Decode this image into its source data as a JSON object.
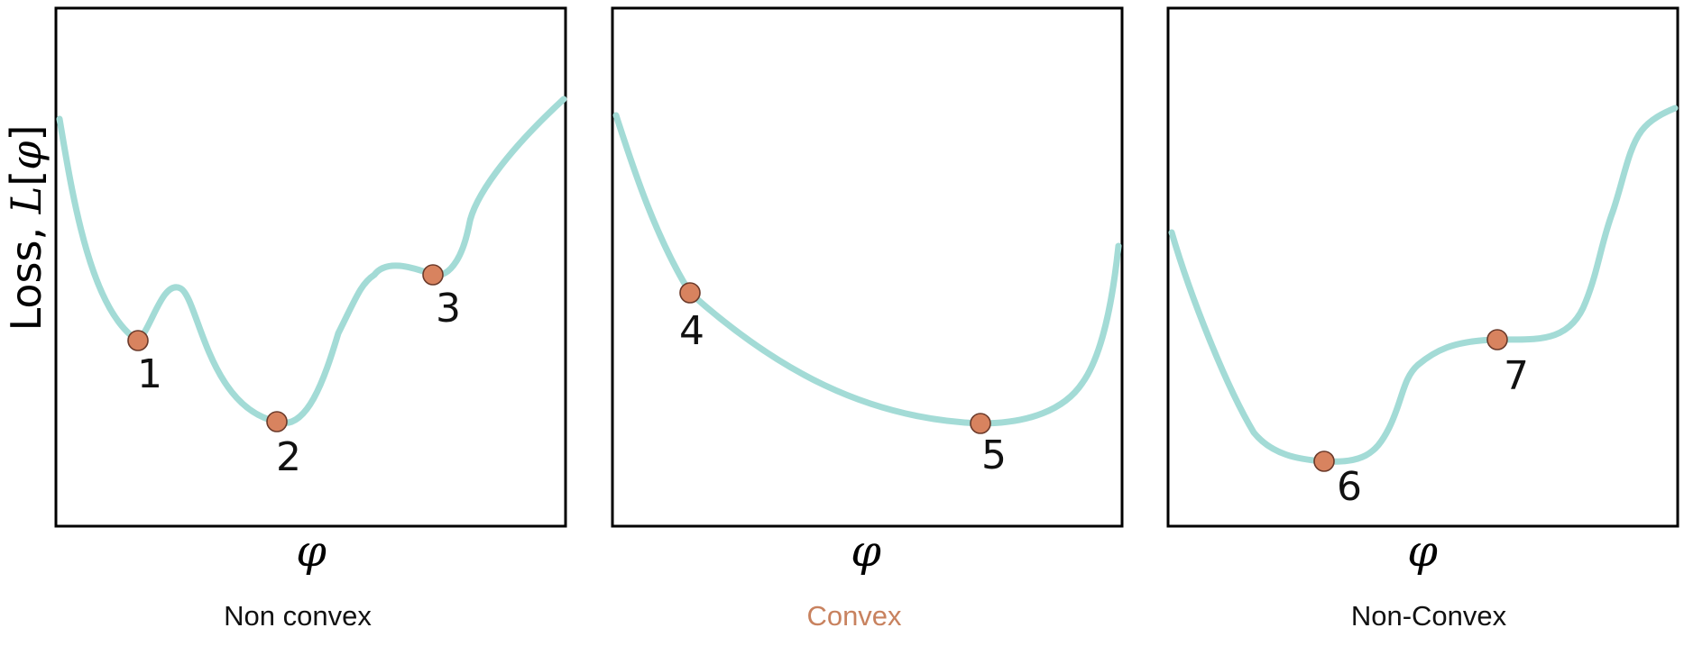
{
  "colors": {
    "curve": "#a3dbd6",
    "point": "#d8835f",
    "caption_default": "#111111",
    "caption_highlight": "#c8825f"
  },
  "y_axis_label": {
    "prefix": "Loss, ",
    "symbol": "L",
    "open": "[",
    "arg": "φ",
    "close": "]"
  },
  "panels": [
    {
      "x_label": "φ",
      "caption": "Non convex",
      "points": [
        {
          "label": "1"
        },
        {
          "label": "2"
        },
        {
          "label": "3"
        }
      ]
    },
    {
      "x_label": "φ",
      "caption": "Convex",
      "points": [
        {
          "label": "4"
        },
        {
          "label": "5"
        }
      ]
    },
    {
      "x_label": "φ",
      "caption": "Non-Convex",
      "points": [
        {
          "label": "6"
        },
        {
          "label": "7"
        }
      ]
    }
  ]
}
